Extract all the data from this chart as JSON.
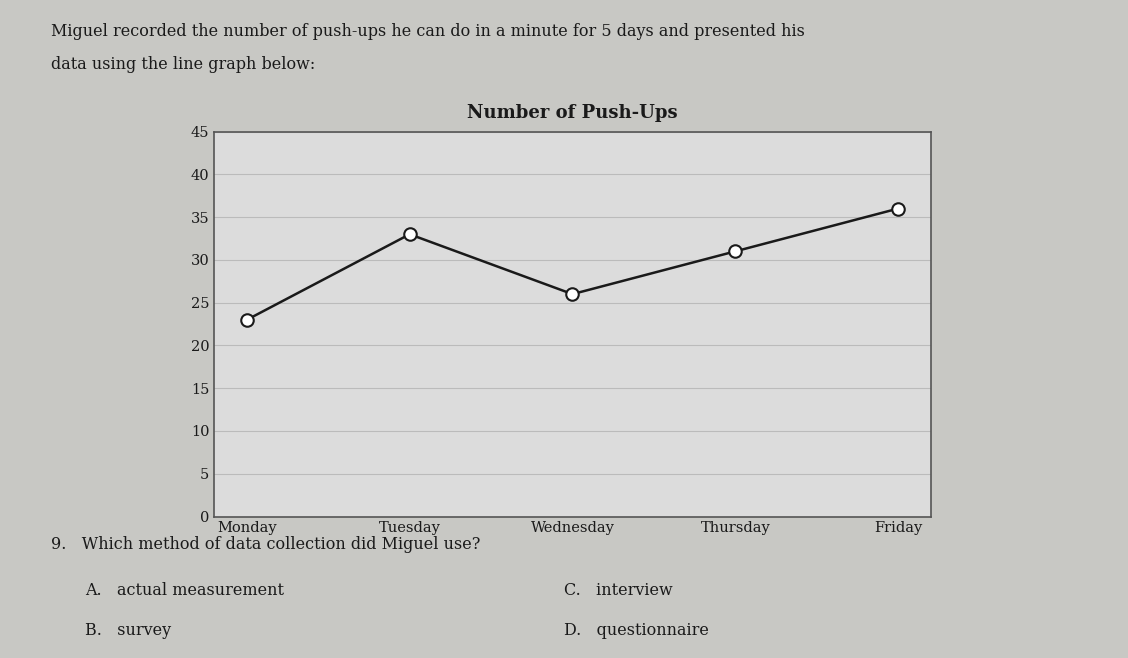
{
  "title": "Number of Push-Ups",
  "days": [
    "Monday",
    "Tuesday",
    "Wednesday",
    "Thursday",
    "Friday"
  ],
  "values": [
    23,
    33,
    26,
    31,
    36
  ],
  "ylim": [
    0,
    45
  ],
  "yticks": [
    0,
    5,
    10,
    15,
    20,
    25,
    30,
    35,
    40,
    45
  ],
  "line_color": "#1a1a1a",
  "marker_color": "#ffffff",
  "marker_edge_color": "#1a1a1a",
  "marker_size": 9,
  "marker_edge_width": 1.5,
  "line_width": 1.8,
  "grid_color": "#bbbbbb",
  "chart_bg_color": "#dcdcdc",
  "page_bg_color": "#c8c8c4",
  "border_color": "#555555",
  "title_fontsize": 13,
  "tick_fontsize": 10.5,
  "question_text": "9.   Which method of data collection did Miguel use?",
  "choice_A": "A.   actual measurement",
  "choice_B": "B.   survey",
  "choice_C": "C.   interview",
  "choice_D": "D.   questionnaire",
  "header_line1": "Miguel recorded the number of push-ups he can do in a minute for 5 days and presented his",
  "header_line2": "data using the line graph below:"
}
